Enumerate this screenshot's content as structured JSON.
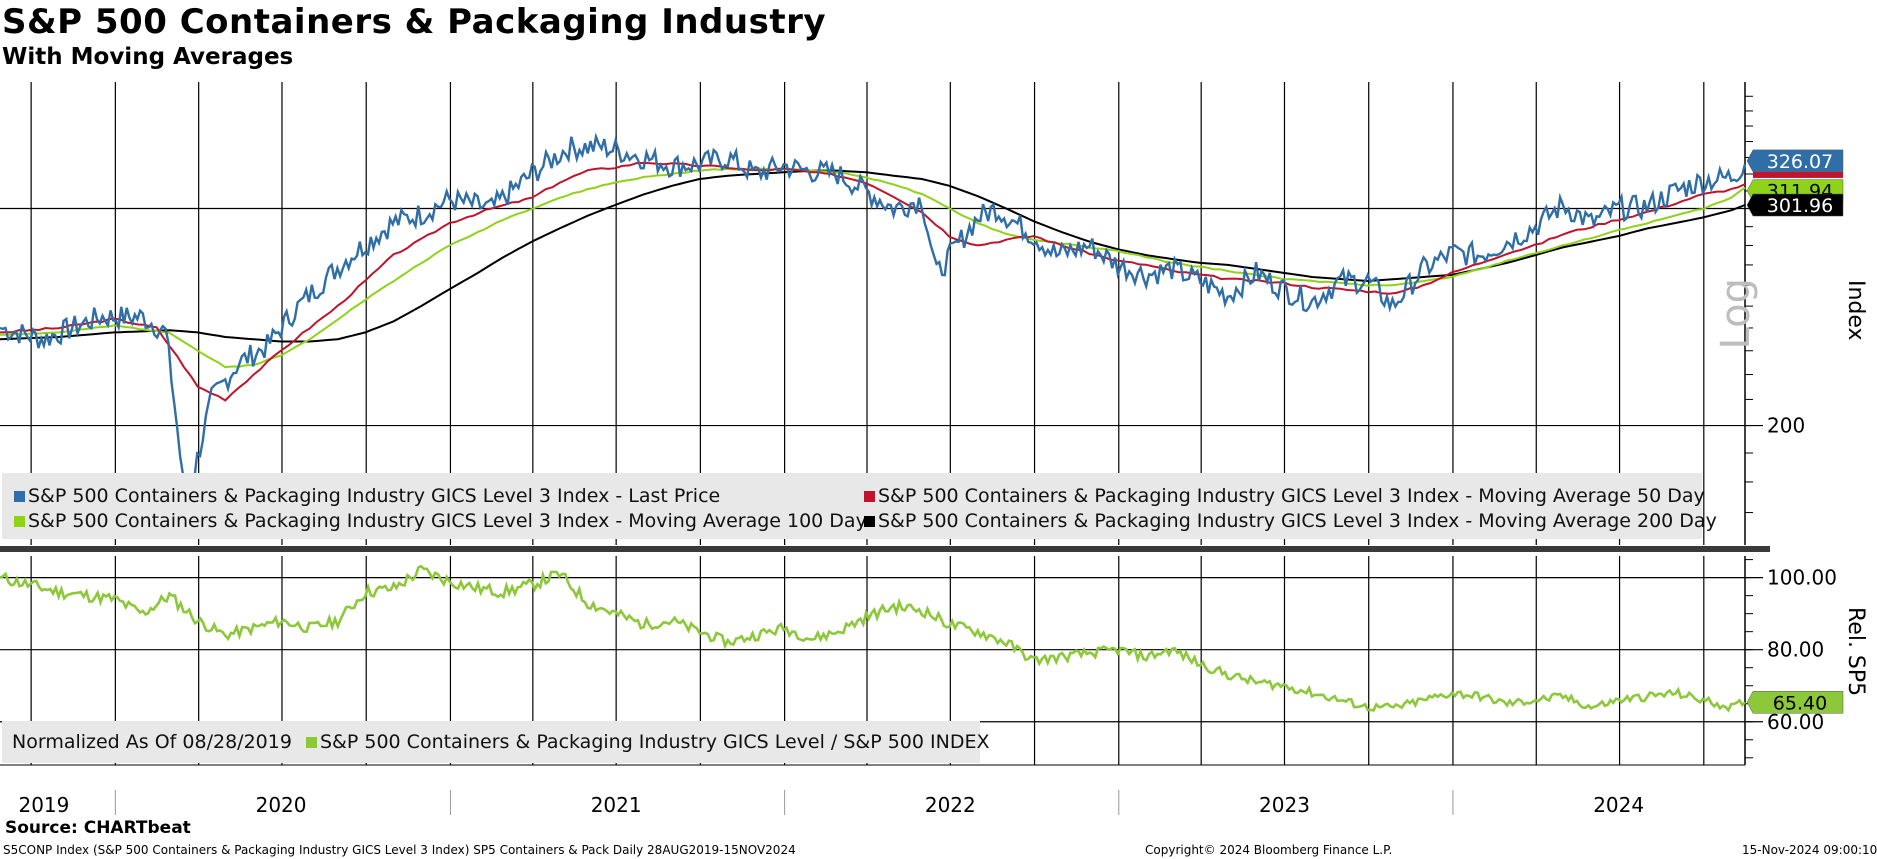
{
  "title": "S&P 500 Containers & Packaging Industry",
  "subtitle": "With Moving Averages",
  "source": "Source: CHARTbeat",
  "footer": {
    "left": "S5CONP Index (S&P 500 Containers & Packaging Industry GICS Level 3 Index) SP5 Containers & Pack  Daily 28AUG2019-15NOV2024",
    "center": "Copyright© 2024 Bloomberg Finance L.P.",
    "right": "15-Nov-2024 09:00:10"
  },
  "colors": {
    "price": "#2f6ea6",
    "ma50": "#c0142d",
    "ma100": "#8fd21a",
    "ma200": "#000000",
    "relative": "#8cc83a",
    "legend_bg": "#e8e8e8"
  },
  "upper_panel": {
    "axis_label": "Index",
    "scale_label": "Log",
    "legend": [
      {
        "label": "S&P 500 Containers & Packaging Industry GICS Level 3 Index - Last Price",
        "color": "#2f6ea6"
      },
      {
        "label": "S&P 500 Containers & Packaging Industry GICS Level 3 Index - Moving Average 50 Day",
        "color": "#c0142d"
      },
      {
        "label": "S&P 500 Containers & Packaging Industry GICS Level 3 Index - Moving Average 100 Day",
        "color": "#8fd21a"
      },
      {
        "label": "S&P 500 Containers & Packaging Industry GICS Level 3 Index - Moving Average 200 Day",
        "color": "#000000"
      }
    ],
    "value_tags": [
      {
        "text": "326.07",
        "value": 326.07,
        "bg": "#2f6ea6",
        "fg": "#ffffff"
      },
      {
        "text": "311.94",
        "value": 311.94,
        "bg": "#8fd21a",
        "fg": "#000000"
      },
      {
        "text": "301.96",
        "value": 301.96,
        "bg": "#000000",
        "fg": "#ffffff"
      }
    ]
  },
  "lower_panel": {
    "axis_label": "Rel. SP5",
    "legend_prefix": "Normalized As Of 08/28/2019",
    "legend_series": "S&P 500 Containers & Packaging Industry GICS Level / S&P 500 INDEX",
    "value_tag": {
      "text": "65.40",
      "value": 65.4
    }
  },
  "chart_data": [
    {
      "type": "line",
      "title": "S&P 500 Containers & Packaging Industry",
      "subtitle": "With Moving Averages",
      "ylabel": "Index",
      "yscale": "log",
      "ylim": [
        160,
        380
      ],
      "yticks": [
        200,
        300
      ],
      "ytick_labels": [
        "200",
        ""
      ],
      "x_tick_labels": [
        "2019",
        "2020",
        "2021",
        "2022",
        "2023",
        "2024"
      ],
      "x_tick_dates": [
        "2019-10-15",
        "2020-06-30",
        "2021-07-01",
        "2022-07-01",
        "2023-07-01",
        "2024-06-30"
      ],
      "xlim": [
        "2019-08-28",
        "2024-11-15"
      ],
      "grid": true,
      "legend_position": "bottom",
      "series": [
        {
          "name": "S&P 500 Containers & Packaging Industry GICS Level 3 Index - Last Price",
          "x": [
            "2019-08-28",
            "2019-10-15",
            "2019-12-15",
            "2020-01-31",
            "2020-02-25",
            "2020-03-18",
            "2020-04-15",
            "2020-05-15",
            "2020-06-15",
            "2020-07-15",
            "2020-08-15",
            "2020-09-15",
            "2020-10-30",
            "2020-11-30",
            "2020-12-31",
            "2021-02-15",
            "2021-03-31",
            "2021-05-10",
            "2021-06-15",
            "2021-07-31",
            "2021-08-31",
            "2021-09-30",
            "2021-10-31",
            "2021-11-30",
            "2021-12-31",
            "2022-01-25",
            "2022-02-28",
            "2022-03-31",
            "2022-04-30",
            "2022-05-31",
            "2022-06-16",
            "2022-07-31",
            "2022-08-20",
            "2022-09-30",
            "2022-10-25",
            "2022-11-30",
            "2022-12-31",
            "2023-01-31",
            "2023-02-28",
            "2023-03-31",
            "2023-04-30",
            "2023-05-31",
            "2023-06-30",
            "2023-07-31",
            "2023-08-31",
            "2023-09-30",
            "2023-10-27",
            "2023-11-30",
            "2023-12-31",
            "2024-01-31",
            "2024-02-29",
            "2024-03-31",
            "2024-04-30",
            "2024-05-31",
            "2024-06-30",
            "2024-07-31",
            "2024-08-31",
            "2024-09-30",
            "2024-10-31",
            "2024-11-15"
          ],
          "y": [
            240,
            235,
            245,
            245,
            238,
            170,
            210,
            225,
            232,
            248,
            262,
            275,
            292,
            297,
            305,
            300,
            320,
            336,
            337,
            330,
            325,
            326,
            330,
            320,
            325,
            322,
            320,
            310,
            300,
            305,
            265,
            295,
            300,
            285,
            275,
            280,
            270,
            265,
            268,
            262,
            255,
            266,
            258,
            252,
            262,
            262,
            250,
            268,
            276,
            275,
            282,
            290,
            302,
            292,
            300,
            301,
            310,
            316,
            318,
            326
          ]
        },
        {
          "name": "S&P 500 Containers & Packaging Industry GICS Level 3 Index - Moving Average 50 Day",
          "x": [
            "2019-08-28",
            "2019-10-31",
            "2019-12-31",
            "2020-02-15",
            "2020-03-31",
            "2020-04-30",
            "2020-05-31",
            "2020-06-30",
            "2020-07-31",
            "2020-08-31",
            "2020-09-30",
            "2020-10-31",
            "2020-11-30",
            "2020-12-31",
            "2021-02-15",
            "2021-03-31",
            "2021-04-30",
            "2021-05-31",
            "2021-06-30",
            "2021-07-31",
            "2021-08-31",
            "2021-09-30",
            "2021-10-31",
            "2021-11-30",
            "2021-12-31",
            "2022-01-31",
            "2022-02-28",
            "2022-03-31",
            "2022-04-30",
            "2022-05-31",
            "2022-06-30",
            "2022-07-31",
            "2022-08-31",
            "2022-09-30",
            "2022-10-31",
            "2022-11-30",
            "2022-12-31",
            "2023-01-31",
            "2023-02-28",
            "2023-03-31",
            "2023-04-30",
            "2023-05-31",
            "2023-06-30",
            "2023-07-31",
            "2023-08-31",
            "2023-09-30",
            "2023-10-31",
            "2023-11-30",
            "2023-12-31",
            "2024-01-31",
            "2024-02-29",
            "2024-03-31",
            "2024-04-30",
            "2024-05-31",
            "2024-06-30",
            "2024-07-31",
            "2024-08-31",
            "2024-09-30",
            "2024-10-31",
            "2024-11-15"
          ],
          "y": [
            238,
            240,
            244,
            240,
            215,
            210,
            220,
            230,
            240,
            250,
            262,
            275,
            283,
            292,
            300,
            306,
            315,
            322,
            324,
            327,
            326,
            325,
            324,
            322,
            323,
            321,
            319,
            315,
            307,
            298,
            285,
            280,
            283,
            285,
            280,
            276,
            272,
            270,
            267,
            265,
            263,
            262,
            261,
            259,
            258,
            257,
            256,
            260,
            266,
            271,
            276,
            280,
            286,
            290,
            294,
            298,
            303,
            308,
            311,
            314
          ]
        },
        {
          "name": "S&P 500 Containers & Packaging Industry GICS Level 3 Index - Moving Average 100 Day",
          "x": [
            "2019-08-28",
            "2019-10-31",
            "2019-12-31",
            "2020-02-29",
            "2020-03-31",
            "2020-04-30",
            "2020-05-31",
            "2020-06-30",
            "2020-07-31",
            "2020-08-31",
            "2020-09-30",
            "2020-10-31",
            "2020-11-30",
            "2020-12-31",
            "2021-01-31",
            "2021-02-28",
            "2021-03-31",
            "2021-04-30",
            "2021-05-31",
            "2021-06-30",
            "2021-07-31",
            "2021-08-31",
            "2021-09-30",
            "2021-10-31",
            "2021-11-30",
            "2021-12-31",
            "2022-01-31",
            "2022-02-28",
            "2022-03-31",
            "2022-04-30",
            "2022-05-31",
            "2022-06-30",
            "2022-07-31",
            "2022-08-31",
            "2022-09-30",
            "2022-10-31",
            "2022-11-30",
            "2022-12-31",
            "2023-01-31",
            "2023-02-28",
            "2023-03-31",
            "2023-04-30",
            "2023-05-31",
            "2023-06-30",
            "2023-07-31",
            "2023-08-31",
            "2023-09-30",
            "2023-10-31",
            "2023-11-30",
            "2023-12-31",
            "2024-01-31",
            "2024-02-29",
            "2024-03-31",
            "2024-04-30",
            "2024-05-31",
            "2024-06-30",
            "2024-07-31",
            "2024-08-31",
            "2024-09-30",
            "2024-10-31",
            "2024-11-15"
          ],
          "y": [
            237,
            238,
            241,
            238,
            230,
            223,
            224,
            228,
            235,
            244,
            253,
            262,
            271,
            280,
            287,
            294,
            300,
            306,
            311,
            315,
            318,
            320,
            322,
            323,
            323,
            323,
            322,
            321,
            318,
            314,
            308,
            300,
            292,
            286,
            283,
            281,
            279,
            277,
            274,
            271,
            269,
            267,
            265,
            263,
            262,
            261,
            260,
            260,
            262,
            264,
            268,
            272,
            276,
            280,
            284,
            288,
            292,
            296,
            300,
            306,
            311.94
          ]
        },
        {
          "name": "S&P 500 Containers & Packaging Industry GICS Level 3 Index - Moving Average 200 Day",
          "x": [
            "2019-08-28",
            "2019-10-31",
            "2019-12-31",
            "2020-02-29",
            "2020-03-31",
            "2020-04-30",
            "2020-05-31",
            "2020-06-30",
            "2020-07-31",
            "2020-08-31",
            "2020-09-30",
            "2020-10-31",
            "2020-11-30",
            "2020-12-31",
            "2021-01-31",
            "2021-02-28",
            "2021-03-31",
            "2021-04-30",
            "2021-05-31",
            "2021-06-30",
            "2021-07-31",
            "2021-08-31",
            "2021-09-30",
            "2021-10-31",
            "2021-11-30",
            "2021-12-31",
            "2022-01-31",
            "2022-02-28",
            "2022-03-31",
            "2022-04-30",
            "2022-05-31",
            "2022-06-30",
            "2022-07-31",
            "2022-08-31",
            "2022-09-30",
            "2022-10-31",
            "2022-11-30",
            "2022-12-31",
            "2023-01-31",
            "2023-02-28",
            "2023-03-31",
            "2023-04-30",
            "2023-05-31",
            "2023-06-30",
            "2023-07-31",
            "2023-08-31",
            "2023-09-30",
            "2023-10-31",
            "2023-11-30",
            "2023-12-31",
            "2024-01-31",
            "2024-02-29",
            "2024-03-31",
            "2024-04-30",
            "2024-05-31",
            "2024-06-30",
            "2024-07-31",
            "2024-08-31",
            "2024-09-30",
            "2024-10-31",
            "2024-11-15"
          ],
          "y": [
            235,
            236,
            238,
            239,
            238,
            236,
            235,
            234,
            234,
            235,
            238,
            243,
            250,
            258,
            266,
            274,
            282,
            289,
            296,
            302,
            308,
            313,
            317,
            319,
            320,
            321,
            322,
            322,
            321,
            319,
            317,
            313,
            307,
            300,
            293,
            287,
            282,
            278,
            275,
            273,
            271,
            270,
            268,
            266,
            264,
            263,
            262,
            263,
            264,
            265,
            268,
            271,
            275,
            279,
            282,
            285,
            289,
            292,
            295,
            299,
            301.96
          ]
        }
      ]
    },
    {
      "type": "line",
      "ylabel": "Rel. SP5",
      "ylim": [
        48,
        106
      ],
      "yticks": [
        60,
        80,
        100
      ],
      "ytick_labels": [
        "60.00",
        "80.00",
        "100.00"
      ],
      "x_tick_labels": [
        "2019",
        "2020",
        "2021",
        "2022",
        "2023",
        "2024"
      ],
      "xlim": [
        "2019-08-28",
        "2024-11-15"
      ],
      "grid": true,
      "legend_position": "bottom-left",
      "series": [
        {
          "name": "S&P 500 Containers & Packaging Industry GICS Level / S&P 500 INDEX",
          "x": [
            "2019-08-28",
            "2019-10-31",
            "2019-12-31",
            "2020-01-31",
            "2020-02-29",
            "2020-03-31",
            "2020-04-30",
            "2020-05-31",
            "2020-06-30",
            "2020-07-31",
            "2020-08-31",
            "2020-09-30",
            "2020-10-31",
            "2020-11-30",
            "2020-12-31",
            "2021-01-31",
            "2021-02-28",
            "2021-03-31",
            "2021-04-30",
            "2021-05-31",
            "2021-06-30",
            "2021-07-31",
            "2021-08-31",
            "2021-09-30",
            "2021-10-31",
            "2021-11-30",
            "2021-12-31",
            "2022-01-31",
            "2022-02-28",
            "2022-03-31",
            "2022-04-30",
            "2022-05-31",
            "2022-06-30",
            "2022-07-31",
            "2022-08-31",
            "2022-09-30",
            "2022-10-31",
            "2022-11-30",
            "2022-12-31",
            "2023-01-31",
            "2023-02-28",
            "2023-03-31",
            "2023-04-30",
            "2023-05-31",
            "2023-06-30",
            "2023-07-31",
            "2023-08-31",
            "2023-09-30",
            "2023-10-31",
            "2023-11-30",
            "2023-12-31",
            "2024-01-31",
            "2024-02-29",
            "2024-03-31",
            "2024-04-30",
            "2024-05-31",
            "2024-06-30",
            "2024-07-31",
            "2024-08-31",
            "2024-09-30",
            "2024-10-31",
            "2024-11-15"
          ],
          "y": [
            100,
            96,
            94,
            90,
            95,
            88,
            84,
            86,
            88,
            86,
            88,
            96,
            97,
            102,
            99,
            97,
            96,
            98,
            101,
            93,
            90,
            87,
            88,
            85,
            82,
            84,
            86,
            83,
            85,
            89,
            92,
            91,
            87,
            85,
            82,
            77,
            78,
            79,
            80,
            78,
            80,
            76,
            73,
            71,
            70,
            68,
            66,
            64,
            64,
            66,
            68,
            67,
            65,
            66,
            67,
            64,
            66,
            67,
            68,
            66,
            64,
            65.4
          ]
        }
      ]
    }
  ]
}
